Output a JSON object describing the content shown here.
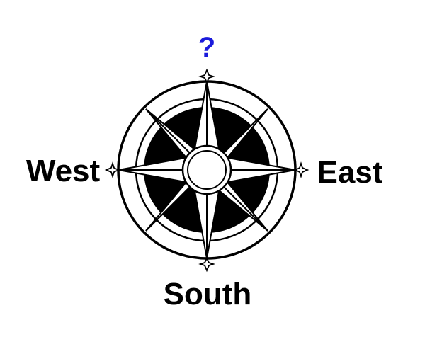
{
  "compass": {
    "north_label": "?",
    "south_label": "South",
    "east_label": "East",
    "west_label": "West",
    "north_label_color": "#1a1adb",
    "label_color": "#000000",
    "ink_color": "#000000",
    "paper_color": "#ffffff"
  }
}
